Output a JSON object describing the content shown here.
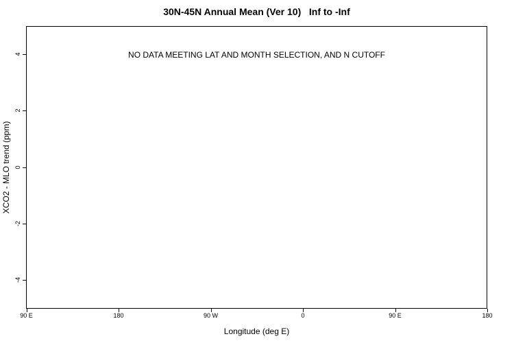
{
  "colors": {
    "background": "#ffffff",
    "foreground": "#000000"
  },
  "chart_data": {
    "type": "scatter",
    "title": "30N-45N Annual Mean (Ver 10)   Inf to -Inf",
    "xlabel": "Longitude (deg E)",
    "ylabel": "XCO2 - MLO trend (ppm)",
    "x_tick_labels": [
      "90 E",
      "180",
      "90 W",
      "0",
      "90 E",
      "180"
    ],
    "y_tick_values": [
      -4,
      -2,
      0,
      2,
      4
    ],
    "y_tick_labels": [
      "-4",
      "-2",
      "0",
      "2",
      "4"
    ],
    "ylim": [
      -5,
      5
    ],
    "grid": false,
    "legend": null,
    "series": [],
    "annotation": "NO DATA MEETING LAT AND MONTH SELECTION, AND N CUTOFF",
    "annotation_y": 4
  }
}
